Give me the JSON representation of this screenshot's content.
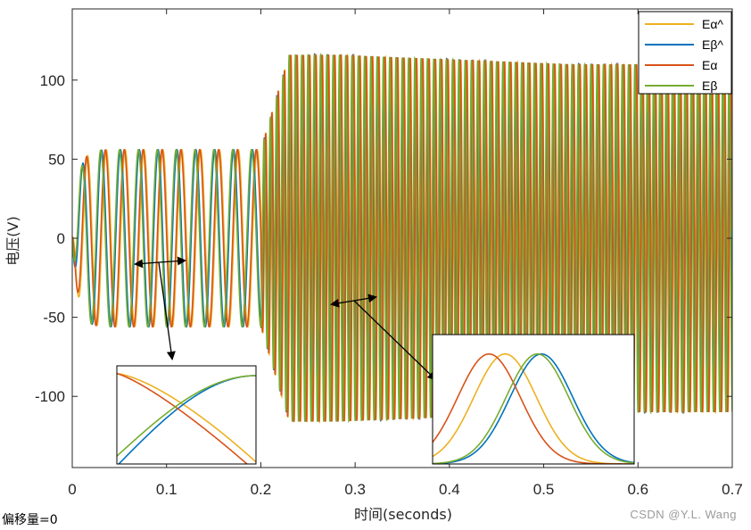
{
  "chart_data": {
    "type": "line",
    "xlabel": "时间(seconds)",
    "ylabel": "电压(V)",
    "xlim": [
      0,
      0.7
    ],
    "ylim": [
      -145,
      145
    ],
    "xticks": [
      "0",
      "0.1",
      "0.2",
      "0.3",
      "0.4",
      "0.5",
      "0.6",
      "0.7"
    ],
    "yticks": [
      "-100",
      "-50",
      "0",
      "50",
      "100"
    ],
    "grid": false,
    "legend_position": "top-right",
    "series": [
      {
        "name": "Eα^",
        "color": "#EDB120"
      },
      {
        "name": "Eβ^",
        "color": "#0072BD"
      },
      {
        "name": "Eα",
        "color": "#D95319"
      },
      {
        "name": "Eβ",
        "color": "#77AC30"
      }
    ],
    "segments": [
      {
        "t_start": 0.0,
        "t_end": 0.2,
        "amplitude": 56,
        "frequency_hz": 50
      },
      {
        "t_start": 0.2,
        "t_end": 0.7,
        "amplitude_range": [
          110,
          116
        ],
        "frequency_hz": 150
      }
    ],
    "footnote": "偏移量=0",
    "watermark": "CSDN @Y.L. Wang"
  }
}
